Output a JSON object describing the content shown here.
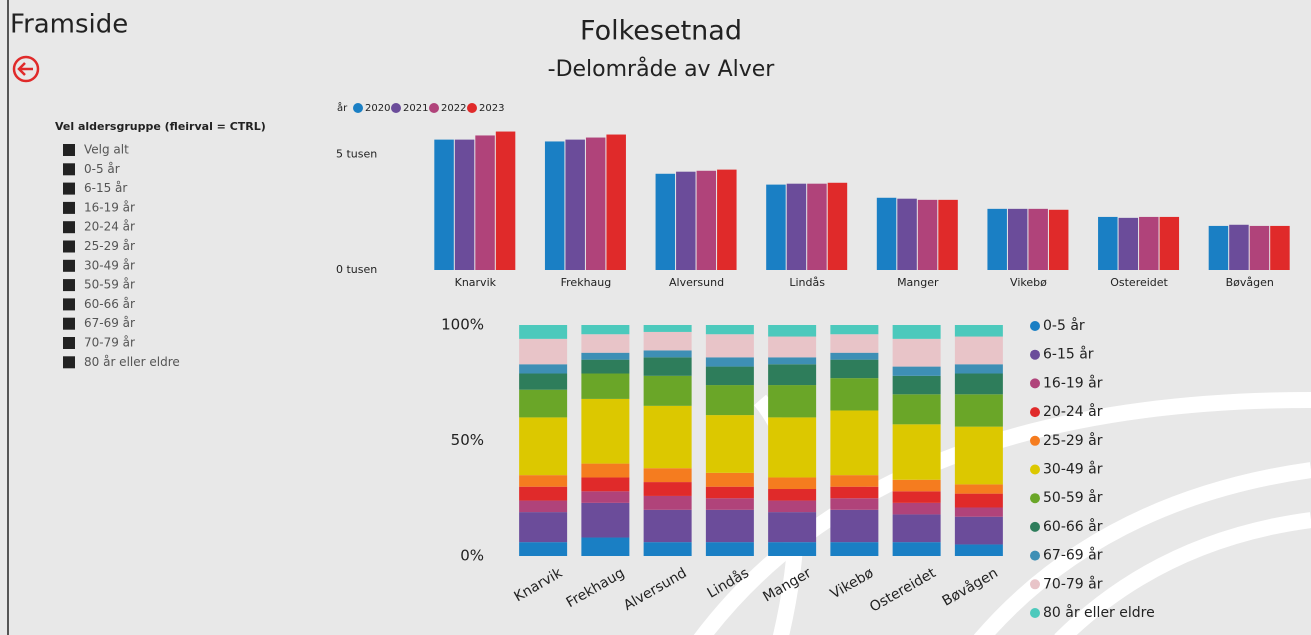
{
  "header": {
    "title": "Framside"
  },
  "slicer": {
    "title": "Vel aldersgruppe (fleirval = CTRL)",
    "items": [
      "Velg alt",
      "0-5 år",
      "6-15 år",
      "16-19 år",
      "20-24 år",
      "25-29 år",
      "30-49 år",
      "50-59 år",
      "60-66 år",
      "67-69 år",
      "70-79 år",
      "80 år eller eldre"
    ]
  },
  "chart_data": [
    {
      "type": "bar",
      "title": "Folkesetnad",
      "subtitle": "-Delområde av Alver",
      "legend_title": "år",
      "legend": "top-left",
      "categories": [
        "Knarvik",
        "Frekhaug",
        "Alversund",
        "Lindås",
        "Manger",
        "Vikebø",
        "Ostereidet",
        "Bøvågen"
      ],
      "series": [
        {
          "name": "2020",
          "color": "#1a7fc4",
          "values": [
            5650,
            5570,
            4170,
            3700,
            3130,
            2650,
            2300,
            1910
          ]
        },
        {
          "name": "2021",
          "color": "#6b4c9a",
          "values": [
            5650,
            5650,
            4260,
            3740,
            3090,
            2650,
            2260,
            1960
          ]
        },
        {
          "name": "2022",
          "color": "#b0437a",
          "values": [
            5830,
            5740,
            4300,
            3740,
            3040,
            2650,
            2300,
            1910
          ]
        },
        {
          "name": "2023",
          "color": "#e02a2a",
          "values": [
            6000,
            5870,
            4350,
            3780,
            3040,
            2610,
            2300,
            1910
          ]
        }
      ],
      "ylim": [
        0,
        6500
      ],
      "yticks": [
        {
          "value": 0,
          "label": "0 tusen"
        },
        {
          "value": 5000,
          "label": "5 tusen"
        }
      ]
    },
    {
      "type": "stacked-bar-100",
      "legend": "right",
      "categories": [
        "Knarvik",
        "Frekhaug",
        "Alversund",
        "Lindås",
        "Manger",
        "Vikebø",
        "Ostereidet",
        "Bøvågen"
      ],
      "series": [
        {
          "name": "0-5 år",
          "color": "#1a7fc4",
          "values": [
            6,
            8,
            6,
            6,
            6,
            6,
            6,
            5
          ]
        },
        {
          "name": "6-15 år",
          "color": "#6b4c9a",
          "values": [
            13,
            15,
            14,
            14,
            13,
            14,
            12,
            12
          ]
        },
        {
          "name": "16-19 år",
          "color": "#b0437a",
          "values": [
            5,
            5,
            6,
            5,
            5,
            5,
            5,
            4
          ]
        },
        {
          "name": "20-24 år",
          "color": "#e02a2a",
          "values": [
            6,
            6,
            6,
            5,
            5,
            5,
            5,
            6
          ]
        },
        {
          "name": "25-29 år",
          "color": "#f57c1f",
          "values": [
            5,
            6,
            6,
            6,
            5,
            5,
            5,
            4
          ]
        },
        {
          "name": "30-49 år",
          "color": "#dcc800",
          "values": [
            25,
            28,
            27,
            25,
            26,
            28,
            24,
            25
          ]
        },
        {
          "name": "50-59 år",
          "color": "#6aa628",
          "values": [
            12,
            11,
            13,
            13,
            14,
            14,
            13,
            14
          ]
        },
        {
          "name": "60-66 år",
          "color": "#2e7d5b",
          "values": [
            7,
            6,
            8,
            8,
            9,
            8,
            8,
            9
          ]
        },
        {
          "name": "67-69 år",
          "color": "#3e8fb5",
          "values": [
            4,
            3,
            3,
            4,
            3,
            3,
            4,
            4
          ]
        },
        {
          "name": "70-79 år",
          "color": "#e8c4c8",
          "values": [
            11,
            8,
            8,
            10,
            9,
            8,
            12,
            12
          ]
        },
        {
          "name": "80 år eller eldre",
          "color": "#4cc9bc",
          "values": [
            6,
            4,
            3,
            4,
            5,
            4,
            6,
            5
          ]
        }
      ],
      "ylim": [
        0,
        100
      ],
      "yticks": [
        {
          "value": 0,
          "label": "0%"
        },
        {
          "value": 50,
          "label": "50%"
        },
        {
          "value": 100,
          "label": "100%"
        }
      ]
    }
  ]
}
